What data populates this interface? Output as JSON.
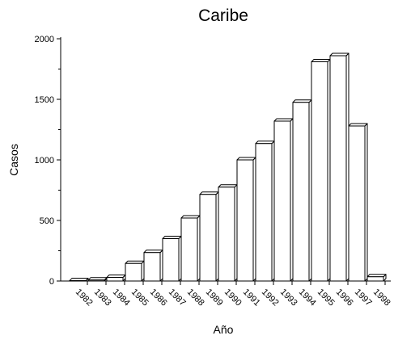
{
  "chart_data": {
    "type": "bar",
    "title": "Caribe",
    "xlabel": "Año",
    "ylabel": "Casos",
    "categories": [
      "1982",
      "1983",
      "1984",
      "1985",
      "1986",
      "1987",
      "1988",
      "1989",
      "1990",
      "1991",
      "1992",
      "1993",
      "1994",
      "1995",
      "1996",
      "1997",
      "1998"
    ],
    "values": [
      3,
      8,
      30,
      145,
      235,
      350,
      520,
      715,
      775,
      1000,
      1135,
      1320,
      1475,
      1810,
      1860,
      1280,
      35
    ],
    "ylim": [
      0,
      2000
    ],
    "yticks": [
      0,
      500,
      1000,
      1500,
      2000
    ],
    "grid": false,
    "legend": "none",
    "style": "3d-extruded",
    "colors": {
      "bar_front": "#ffffff",
      "bar_side": "#ffffff",
      "stroke": "#000000"
    }
  }
}
